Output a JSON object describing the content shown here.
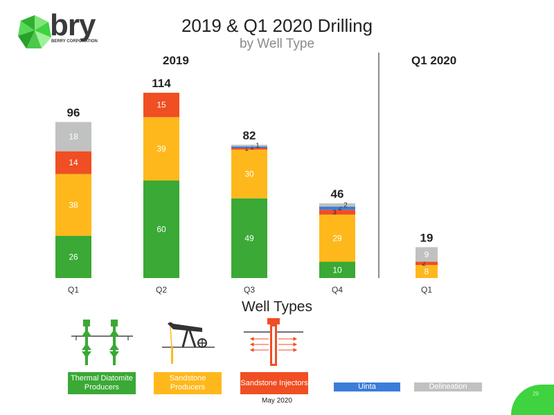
{
  "logo": {
    "word": "bry",
    "sub": "BERRY CORPORATION"
  },
  "title": "2019 & Q1 2020 Drilling",
  "subtitle": "by Well Type",
  "groups": {
    "g2019": "2019",
    "gq1": "Q1 2020"
  },
  "colors": {
    "thermal": "#3aa935",
    "sandstone": "#ffb81c",
    "injectors": "#f04e23",
    "uinta": "#3c7dd9",
    "delineation": "#c0c2c1"
  },
  "chart_data": {
    "type": "bar",
    "stacked": true,
    "categories": [
      "Q1",
      "Q2",
      "Q3",
      "Q4",
      "Q1"
    ],
    "group_labels": [
      "2019",
      "2019",
      "2019",
      "2019",
      "Q1 2020"
    ],
    "series": [
      {
        "name": "Thermal Diatomite Producers",
        "values": [
          26,
          60,
          49,
          10,
          0
        ]
      },
      {
        "name": "Sandstone Producers",
        "values": [
          38,
          39,
          30,
          29,
          8
        ]
      },
      {
        "name": "Sandstone Injectors",
        "values": [
          14,
          15,
          1,
          3,
          2
        ]
      },
      {
        "name": "Uinta",
        "values": [
          0,
          0,
          1,
          2,
          0
        ]
      },
      {
        "name": "Delineation",
        "values": [
          18,
          0,
          1,
          2,
          9
        ]
      }
    ],
    "totals": [
      96,
      114,
      82,
      46,
      19
    ]
  },
  "well_types_title": "Well Types",
  "icons": [
    "thermal-diatomite-icon",
    "pumpjack-icon",
    "injector-icon"
  ],
  "legend": [
    {
      "label": "Thermal Diatomite Producers"
    },
    {
      "label": "Sandstone Producers"
    },
    {
      "label": "Sandstone Injectors"
    },
    {
      "label": "Uinta"
    },
    {
      "label": "Delineation"
    }
  ],
  "footer_date": "May 2020",
  "page_number": "29"
}
